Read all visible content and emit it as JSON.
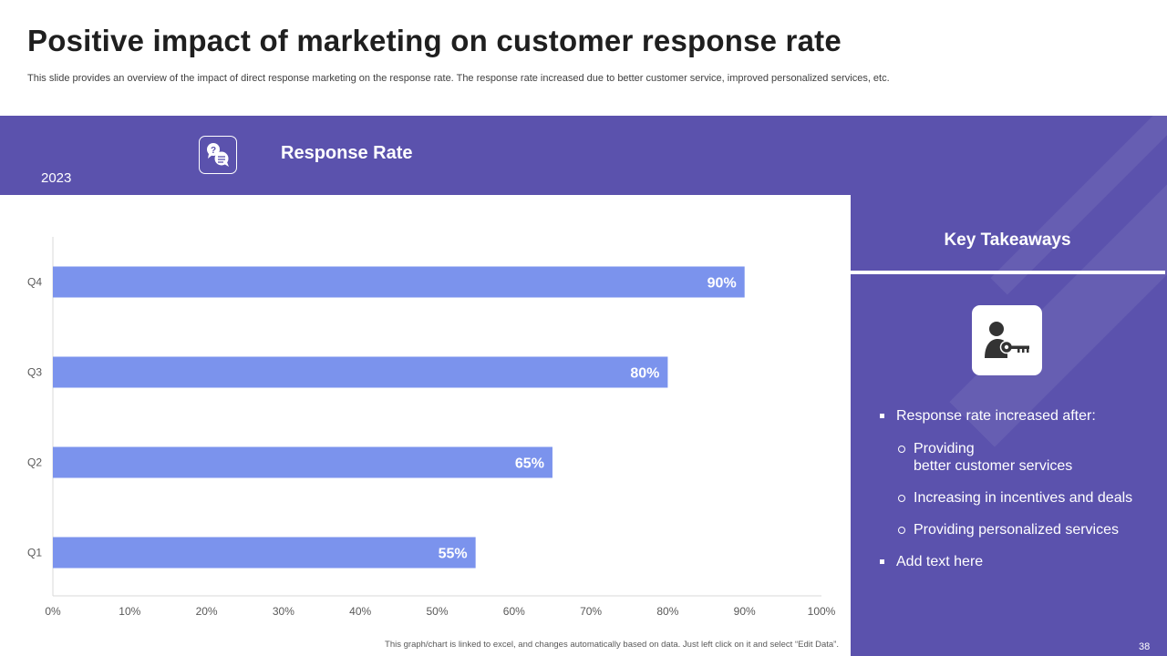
{
  "header": {
    "title": "Positive impact of marketing on customer response rate",
    "subtitle": "This slide provides an overview of the impact of direct response marketing on the response rate. The response rate increased due to better customer service, improved personalized services, etc."
  },
  "chart_header": {
    "year": "2023",
    "title": "Response Rate",
    "icon": "question-chat-icon"
  },
  "chart_data": {
    "type": "bar",
    "orientation": "horizontal",
    "title": "Response Rate",
    "categories": [
      "Q1",
      "Q2",
      "Q3",
      "Q4"
    ],
    "values": [
      55,
      65,
      80,
      90
    ],
    "data_labels": [
      "55%",
      "65%",
      "80%",
      "90%"
    ],
    "xlim": [
      0,
      100
    ],
    "xticks": [
      "0%",
      "10%",
      "20%",
      "30%",
      "40%",
      "50%",
      "60%",
      "70%",
      "80%",
      "90%",
      "100%"
    ],
    "xlabel": "",
    "ylabel": "",
    "grid": false,
    "legend": "none",
    "bar_color": "#7b93ed"
  },
  "takeaways": {
    "title": "Key Takeaways",
    "icon": "user-key-icon",
    "items": [
      {
        "level": 1,
        "text": "Response rate increased after:"
      },
      {
        "level": 2,
        "text": "Providing\nbetter customer services"
      },
      {
        "level": 2,
        "text": "Increasing in incentives and deals"
      },
      {
        "level": 2,
        "text": "Providing personalized services"
      },
      {
        "level": 1,
        "text": "Add text here"
      }
    ]
  },
  "footnote": "This graph/chart is linked to excel, and changes automatically based on data. Just left click on it and select “Edit Data”.",
  "page_number": "38",
  "colors": {
    "accent": "#5b52ad",
    "bar": "#7b93ed",
    "title_text": "#1f1f1f"
  }
}
